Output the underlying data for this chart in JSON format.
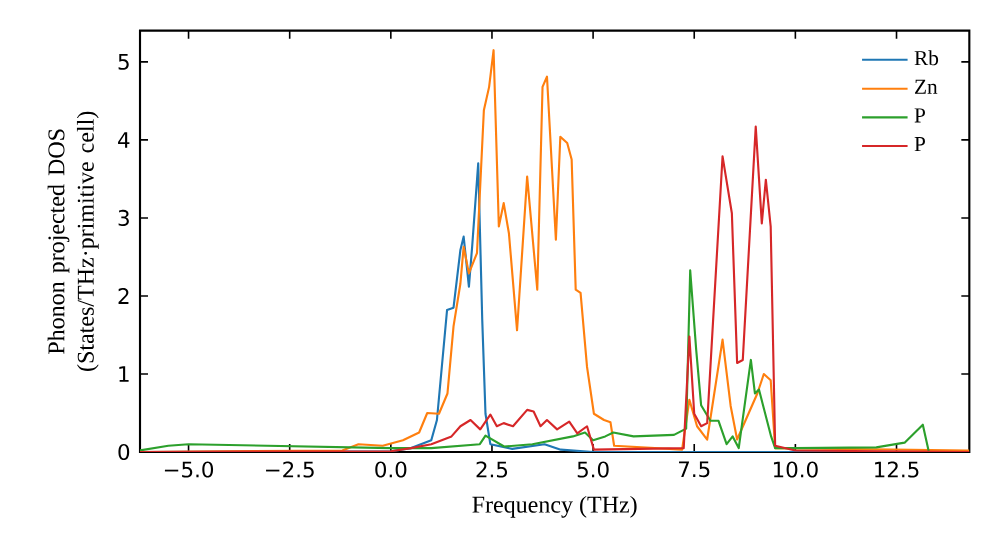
{
  "chart_data": {
    "type": "line",
    "xlabel": "Frequency (THz)",
    "ylabel": "Phonon projected DOS\n(States/THz·primitive cell)",
    "xlim": [
      -6.2,
      14.3
    ],
    "ylim": [
      0,
      5.4
    ],
    "xticks": [
      {
        "value": -5,
        "label": "−5.0"
      },
      {
        "value": -2.5,
        "label": "−2.5"
      },
      {
        "value": 0,
        "label": "0.0"
      },
      {
        "value": 2.5,
        "label": "2.5"
      },
      {
        "value": 5,
        "label": "5.0"
      },
      {
        "value": 7.5,
        "label": "7.5"
      },
      {
        "value": 10,
        "label": "10.0"
      },
      {
        "value": 12.5,
        "label": "12.5"
      }
    ],
    "yticks": [
      0,
      1,
      2,
      3,
      4,
      5
    ],
    "legend": "top right",
    "grid": false,
    "marker": "none",
    "line_style": "solid",
    "series": [
      {
        "name": "Rb",
        "color": "#1f77b4",
        "x": [
          -6.2,
          0,
          0.5,
          1.0,
          1.14,
          1.39,
          1.55,
          1.72,
          1.8,
          1.93,
          2.01,
          2.16,
          2.26,
          2.34,
          2.46,
          3.0,
          3.8,
          4.2,
          5.0,
          14.3
        ],
        "values": [
          0,
          0.01,
          0.05,
          0.15,
          0.41,
          1.82,
          1.85,
          2.59,
          2.76,
          2.12,
          2.63,
          3.7,
          1.69,
          0.49,
          0.1,
          0.04,
          0.1,
          0.03,
          0,
          0
        ]
      },
      {
        "name": "Zn",
        "color": "#ff7f0e",
        "x": [
          -6.2,
          -1.2,
          -0.8,
          -0.2,
          0.3,
          0.7,
          0.9,
          1.19,
          1.4,
          1.55,
          1.72,
          1.8,
          1.93,
          2.13,
          2.3,
          2.43,
          2.54,
          2.67,
          2.79,
          2.92,
          3.12,
          3.37,
          3.62,
          3.75,
          3.86,
          4.08,
          4.19,
          4.36,
          4.47,
          4.57,
          4.69,
          4.85,
          5.02,
          5.27,
          5.43,
          5.52,
          7.2,
          7.38,
          7.57,
          7.82,
          8.2,
          8.4,
          8.56,
          9.06,
          9.22,
          9.39,
          9.5,
          14.3
        ],
        "values": [
          0,
          0.02,
          0.1,
          0.08,
          0.15,
          0.25,
          0.5,
          0.49,
          0.75,
          1.61,
          2.16,
          2.63,
          2.29,
          2.55,
          4.38,
          4.68,
          5.15,
          2.89,
          3.19,
          2.8,
          1.56,
          3.53,
          2.08,
          4.68,
          4.81,
          2.72,
          4.04,
          3.96,
          3.75,
          2.08,
          2.04,
          1.09,
          0.49,
          0.41,
          0.38,
          0.08,
          0.03,
          0.67,
          0.33,
          0.16,
          1.44,
          0.59,
          0.16,
          0.75,
          1.0,
          0.92,
          0.05,
          0.02
        ]
      },
      {
        "name": "P",
        "color": "#2ca02c",
        "x": [
          -6.2,
          -5.5,
          -5.0,
          0,
          1.0,
          2.2,
          2.34,
          2.8,
          3.5,
          4.0,
          4.5,
          4.8,
          5.0,
          5.3,
          5.5,
          6.0,
          7.0,
          7.3,
          7.4,
          7.55,
          7.67,
          7.9,
          8.1,
          8.3,
          8.45,
          8.6,
          8.9,
          9.0,
          9.1,
          9.2,
          9.4,
          9.5,
          10.0,
          12.0,
          12.7,
          13.15,
          13.3,
          14.3
        ],
        "values": [
          0.02,
          0.08,
          0.1,
          0.05,
          0.05,
          0.1,
          0.21,
          0.07,
          0.1,
          0.15,
          0.2,
          0.25,
          0.15,
          0.2,
          0.25,
          0.2,
          0.22,
          0.3,
          2.33,
          1.3,
          0.6,
          0.4,
          0.4,
          0.1,
          0.2,
          0.05,
          1.18,
          0.75,
          0.8,
          0.6,
          0.2,
          0.05,
          0.05,
          0.06,
          0.12,
          0.35,
          0,
          0
        ]
      },
      {
        "name": "P",
        "color": "#d62728",
        "x": [
          -6.2,
          0,
          0.5,
          1.0,
          1.5,
          1.72,
          1.97,
          2.21,
          2.46,
          2.62,
          2.79,
          3.02,
          3.37,
          3.53,
          3.7,
          3.86,
          4.11,
          4.41,
          4.61,
          4.85,
          5.02,
          7.24,
          7.38,
          7.5,
          7.67,
          7.82,
          8.2,
          8.43,
          8.56,
          8.7,
          9.02,
          9.17,
          9.27,
          9.39,
          9.5,
          10.0,
          14.3
        ],
        "values": [
          0,
          0.01,
          0.05,
          0.1,
          0.2,
          0.33,
          0.41,
          0.29,
          0.48,
          0.33,
          0.37,
          0.33,
          0.54,
          0.52,
          0.33,
          0.41,
          0.29,
          0.39,
          0.24,
          0.33,
          0.03,
          0.05,
          1.48,
          0.49,
          0.33,
          0.37,
          3.79,
          3.06,
          1.14,
          1.18,
          4.17,
          2.93,
          3.49,
          2.89,
          0.08,
          0.02,
          0
        ]
      }
    ]
  }
}
